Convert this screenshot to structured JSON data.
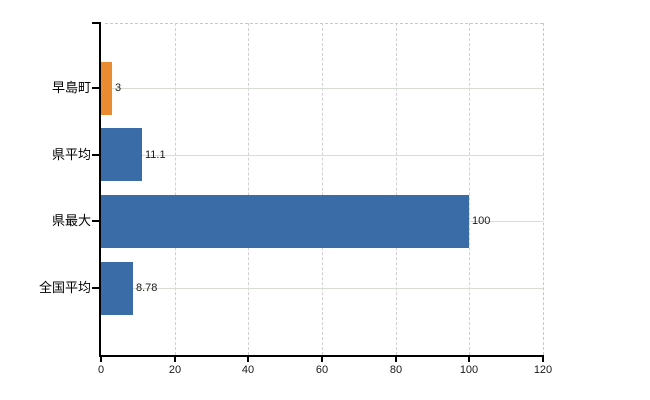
{
  "chart_data": {
    "type": "bar",
    "orientation": "horizontal",
    "title": "",
    "xlabel": "",
    "ylabel": "",
    "categories": [
      "早島町",
      "県平均",
      "県最大",
      "全国平均"
    ],
    "values": [
      3,
      11.1,
      100,
      8.78
    ],
    "value_labels": [
      "3",
      "11.1",
      "100",
      "8.78"
    ],
    "bar_colors": [
      "#EB8B31",
      "#3A6CA8",
      "#3A6CA8",
      "#3A6CA8"
    ],
    "x_ticks": [
      0,
      20,
      40,
      60,
      80,
      100,
      120
    ],
    "x_tick_labels": [
      "0",
      "20",
      "40",
      "60",
      "80",
      "100",
      "120"
    ],
    "xlim": [
      0,
      120
    ],
    "legend": "none",
    "grid": {
      "vertical": "dashed",
      "horizontal": "solid"
    },
    "colors": {
      "bar_highlight": "#EB8B31",
      "bar_default": "#3A6CA8",
      "axis": "#000000",
      "grid_vertical": "#d4cdd4",
      "grid_horizontal": "#d6ddd2",
      "frame_dashed": "#c9c9c9",
      "text": "#1a1a1a"
    }
  }
}
